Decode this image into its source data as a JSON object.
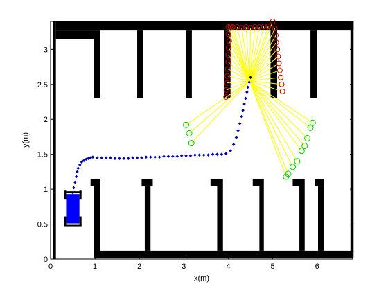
{
  "chart_data": {
    "type": "scatter",
    "xlabel": "x(m)",
    "ylabel": "y(m)",
    "xlim": [
      0,
      6.8
    ],
    "ylim": [
      0,
      3.4
    ],
    "xticks": [
      0,
      1,
      2,
      3,
      4,
      5,
      6
    ],
    "yticks": [
      0,
      0.5,
      1,
      1.5,
      2,
      2.5,
      3
    ],
    "ytick_labels": [
      "0",
      "0.5",
      "1",
      "1.5",
      "2",
      "2.5",
      "3"
    ],
    "grid": false,
    "colors": {
      "walls": "#000000",
      "path": "#0000b0",
      "rays": "#ffff00",
      "upper_hits": "#cc0000",
      "lower_hits": "#00cc00",
      "vehicle": "#0000ff"
    },
    "walls": [
      {
        "x": [
          0.12,
          6.82
        ],
        "y": [
          3.27,
          3.4
        ]
      },
      {
        "x": [
          0.12,
          1.0
        ],
        "y": [
          3.15,
          3.27
        ]
      },
      {
        "x": [
          6.75,
          6.82
        ],
        "y": [
          0.1,
          3.4
        ]
      },
      {
        "x": [
          0.98,
          1.12
        ],
        "y": [
          2.3,
          3.27
        ]
      },
      {
        "x": [
          1.95,
          2.08
        ],
        "y": [
          2.3,
          3.27
        ]
      },
      {
        "x": [
          3.05,
          3.18
        ],
        "y": [
          2.3,
          3.27
        ]
      },
      {
        "x": [
          3.9,
          4.05
        ],
        "y": [
          2.3,
          3.27
        ]
      },
      {
        "x": [
          4.95,
          5.1
        ],
        "y": [
          2.3,
          3.27
        ]
      },
      {
        "x": [
          5.85,
          6.0
        ],
        "y": [
          2.3,
          3.27
        ]
      },
      {
        "x": [
          0.05,
          0.12
        ],
        "y": [
          0,
          3.4
        ]
      },
      {
        "x": [
          1.05,
          6.82
        ],
        "y": [
          0.02,
          0.12
        ]
      },
      {
        "x": [
          0.98,
          1.12
        ],
        "y": [
          0.02,
          1.15
        ]
      },
      {
        "x": [
          0.9,
          1.12
        ],
        "y": [
          1.05,
          1.15
        ]
      },
      {
        "x": [
          2.12,
          2.25
        ],
        "y": [
          0.12,
          1.05
        ]
      },
      {
        "x": [
          2.05,
          2.3
        ],
        "y": [
          1.05,
          1.15
        ]
      },
      {
        "x": [
          3.75,
          3.88
        ],
        "y": [
          0.12,
          1.05
        ]
      },
      {
        "x": [
          3.6,
          3.88
        ],
        "y": [
          1.05,
          1.15
        ]
      },
      {
        "x": [
          4.7,
          4.8
        ],
        "y": [
          0.12,
          1.05
        ]
      },
      {
        "x": [
          4.55,
          4.8
        ],
        "y": [
          1.05,
          1.15
        ]
      },
      {
        "x": [
          5.6,
          5.72
        ],
        "y": [
          0.12,
          1.05
        ]
      },
      {
        "x": [
          5.45,
          5.72
        ],
        "y": [
          1.05,
          1.15
        ]
      },
      {
        "x": [
          6.02,
          6.15
        ],
        "y": [
          0.12,
          1.05
        ]
      },
      {
        "x": [
          5.95,
          6.15
        ],
        "y": [
          1.05,
          1.15
        ]
      }
    ],
    "path": {
      "x": [
        0.5,
        0.52,
        0.55,
        0.58,
        0.6,
        0.62,
        0.66,
        0.7,
        0.75,
        0.8,
        0.85,
        0.9,
        0.95,
        1.05,
        1.15,
        1.25,
        1.35,
        1.45,
        1.55,
        1.65,
        1.75,
        1.85,
        1.95,
        2.05,
        2.15,
        2.25,
        2.35,
        2.45,
        2.55,
        2.65,
        2.75,
        2.85,
        2.95,
        3.05,
        3.15,
        3.25,
        3.35,
        3.45,
        3.55,
        3.65,
        3.75,
        3.85,
        3.95,
        4.05,
        4.12,
        4.18,
        4.22,
        4.26,
        4.3,
        4.33,
        4.36,
        4.39,
        4.42,
        4.44,
        4.47,
        4.5
      ],
      "y": [
        0.95,
        1.02,
        1.1,
        1.18,
        1.25,
        1.3,
        1.35,
        1.39,
        1.41,
        1.43,
        1.44,
        1.45,
        1.46,
        1.45,
        1.45,
        1.45,
        1.45,
        1.44,
        1.44,
        1.44,
        1.44,
        1.45,
        1.45,
        1.45,
        1.46,
        1.46,
        1.46,
        1.46,
        1.47,
        1.47,
        1.47,
        1.47,
        1.48,
        1.48,
        1.48,
        1.49,
        1.49,
        1.49,
        1.49,
        1.5,
        1.5,
        1.5,
        1.51,
        1.55,
        1.64,
        1.74,
        1.84,
        1.94,
        2.04,
        2.13,
        2.22,
        2.3,
        2.39,
        2.46,
        2.53,
        2.6
      ]
    },
    "sensor_origin": [
      4.48,
      2.55
    ],
    "upper_hits": {
      "x": [
        3.95,
        3.96,
        3.97,
        3.98,
        3.99,
        4.0,
        4.0,
        4.01,
        4.02,
        4.0,
        4.0,
        4.05,
        4.1,
        4.2,
        4.3,
        4.4,
        4.5,
        4.6,
        4.7,
        4.8,
        4.9,
        5.0,
        5.05,
        5.07,
        5.08,
        5.1,
        5.12,
        5.14,
        5.16,
        5.18,
        5.2,
        5.22
      ],
      "y": [
        2.32,
        2.42,
        2.52,
        2.62,
        2.72,
        2.82,
        2.92,
        3.02,
        3.12,
        3.22,
        3.32,
        3.33,
        3.32,
        3.32,
        3.31,
        3.32,
        3.31,
        3.32,
        3.32,
        3.33,
        3.33,
        3.4,
        3.3,
        3.2,
        3.1,
        3.0,
        2.9,
        2.8,
        2.7,
        2.6,
        2.5,
        2.4
      ]
    },
    "lower_hits": {
      "x": [
        3.05,
        3.12,
        3.17,
        5.3,
        5.35,
        5.45,
        5.55,
        5.65,
        5.72,
        5.78,
        5.85,
        5.9
      ],
      "y": [
        1.92,
        1.8,
        1.66,
        1.18,
        1.22,
        1.32,
        1.4,
        1.55,
        1.62,
        1.73,
        1.88,
        1.95
      ]
    },
    "vehicle": {
      "x": 0.5,
      "y": 0.72
    }
  }
}
